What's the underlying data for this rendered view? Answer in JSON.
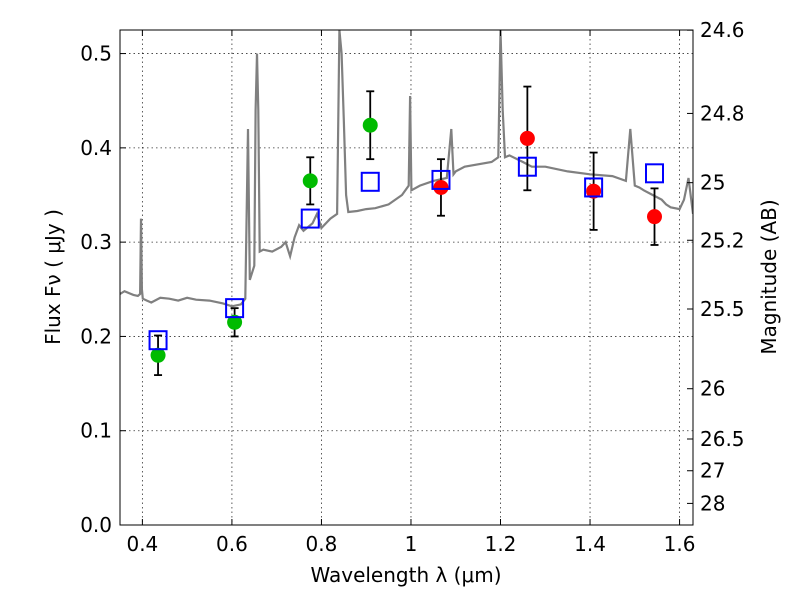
{
  "chart_data": {
    "type": "scatter",
    "title": "",
    "xlabel": "Wavelength  λ (μm)",
    "ylabel": "Flux  Fν  ( μJy )",
    "ylabel_right": "Magnitude (AB)",
    "xlim": [
      0.35,
      1.63
    ],
    "ylim": [
      0.0,
      0.525
    ],
    "grid": true,
    "x_ticks": [
      0.4,
      0.6,
      0.8,
      1.0,
      1.2,
      1.4,
      1.6
    ],
    "x_tick_labels": [
      "0.4",
      "0.6",
      "0.8",
      "1",
      "1.2",
      "1.4",
      "1.6"
    ],
    "y_ticks": [
      0.0,
      0.1,
      0.2,
      0.3,
      0.4,
      0.5
    ],
    "y_tick_labels": [
      "0.0",
      "0.1",
      "0.2",
      "0.3",
      "0.4",
      "0.5"
    ],
    "right_ticks": [
      24.6,
      24.8,
      25.0,
      25.2,
      25.5,
      26.0,
      26.5,
      27.0,
      28.0
    ],
    "right_tick_labels": [
      "24.6",
      "24.8",
      "25",
      "25.2",
      "25.5",
      "26",
      "26.5",
      "27",
      "28"
    ],
    "colors": {
      "model": "#808080",
      "green": "#00bb00",
      "red": "#ff0000",
      "box": "#0000ff",
      "errorbar": "#000000"
    },
    "series": [
      {
        "marker": "circle",
        "color": "#00bb00",
        "points": [
          {
            "x": 0.435,
            "y": 0.18,
            "err": 0.021
          },
          {
            "x": 0.606,
            "y": 0.215,
            "err": 0.015
          },
          {
            "x": 0.775,
            "y": 0.365,
            "err": 0.025
          },
          {
            "x": 0.909,
            "y": 0.424,
            "err": 0.036
          }
        ]
      },
      {
        "marker": "circle",
        "color": "#ff0000",
        "points": [
          {
            "x": 1.067,
            "y": 0.358,
            "err": 0.03
          },
          {
            "x": 1.26,
            "y": 0.41,
            "err": 0.055
          },
          {
            "x": 1.408,
            "y": 0.354,
            "err": 0.041
          },
          {
            "x": 1.544,
            "y": 0.327,
            "err": 0.03
          }
        ]
      },
      {
        "marker": "square",
        "color": "#0000ff",
        "points": [
          {
            "x": 0.435,
            "y": 0.196
          },
          {
            "x": 0.606,
            "y": 0.23
          },
          {
            "x": 0.775,
            "y": 0.325
          },
          {
            "x": 0.909,
            "y": 0.364
          },
          {
            "x": 1.067,
            "y": 0.366
          },
          {
            "x": 1.26,
            "y": 0.38
          },
          {
            "x": 1.408,
            "y": 0.358
          },
          {
            "x": 1.544,
            "y": 0.373
          }
        ]
      },
      {
        "type": "line",
        "color": "#808080",
        "x": [
          0.35,
          0.36,
          0.37,
          0.38,
          0.39,
          0.395,
          0.397,
          0.399,
          0.401,
          0.41,
          0.42,
          0.44,
          0.46,
          0.48,
          0.5,
          0.52,
          0.55,
          0.58,
          0.6,
          0.62,
          0.63,
          0.636,
          0.64,
          0.65,
          0.653,
          0.656,
          0.659,
          0.662,
          0.67,
          0.69,
          0.71,
          0.72,
          0.73,
          0.74,
          0.75,
          0.76,
          0.78,
          0.79,
          0.8,
          0.82,
          0.835,
          0.84,
          0.845,
          0.85,
          0.855,
          0.86,
          0.88,
          0.9,
          0.92,
          0.95,
          0.98,
          0.995,
          0.998,
          1.001,
          1.02,
          1.05,
          1.08,
          1.09,
          1.095,
          1.1,
          1.12,
          1.18,
          1.195,
          1.2,
          1.205,
          1.21,
          1.22,
          1.25,
          1.27,
          1.3,
          1.35,
          1.4,
          1.45,
          1.48,
          1.49,
          1.5,
          1.51,
          1.52,
          1.54,
          1.56,
          1.57,
          1.58,
          1.6,
          1.61,
          1.62,
          1.63
        ],
        "y": [
          0.245,
          0.248,
          0.246,
          0.244,
          0.243,
          0.245,
          0.325,
          0.25,
          0.24,
          0.238,
          0.236,
          0.241,
          0.24,
          0.238,
          0.241,
          0.239,
          0.238,
          0.235,
          0.232,
          0.234,
          0.24,
          0.42,
          0.26,
          0.275,
          0.44,
          0.5,
          0.44,
          0.29,
          0.292,
          0.29,
          0.295,
          0.3,
          0.285,
          0.305,
          0.318,
          0.312,
          0.32,
          0.33,
          0.315,
          0.325,
          0.33,
          0.525,
          0.5,
          0.43,
          0.35,
          0.332,
          0.333,
          0.335,
          0.336,
          0.34,
          0.35,
          0.36,
          0.455,
          0.355,
          0.36,
          0.365,
          0.368,
          0.42,
          0.372,
          0.375,
          0.38,
          0.385,
          0.39,
          0.525,
          0.44,
          0.39,
          0.392,
          0.385,
          0.38,
          0.38,
          0.375,
          0.372,
          0.37,
          0.365,
          0.42,
          0.36,
          0.358,
          0.355,
          0.35,
          0.345,
          0.34,
          0.337,
          0.335,
          0.345,
          0.368,
          0.33
        ]
      }
    ]
  }
}
